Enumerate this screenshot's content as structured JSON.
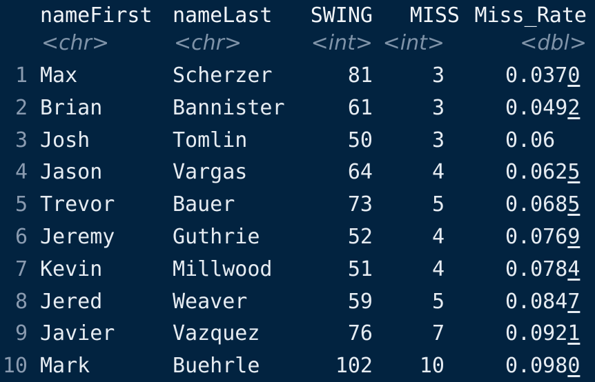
{
  "columns": [
    {
      "name": "nameFirst",
      "type": "<chr>"
    },
    {
      "name": "nameLast",
      "type": "<chr>"
    },
    {
      "name": "SWING",
      "type": "<int>"
    },
    {
      "name": "MISS",
      "type": "<int>"
    },
    {
      "name": "Miss_Rate",
      "type": "<dbl>"
    }
  ],
  "rows": [
    {
      "n": "1",
      "nameFirst": "Max",
      "nameLast": "Scherzer",
      "SWING": "81",
      "MISS": "3",
      "rate_main": "0.037",
      "rate_sig": "0"
    },
    {
      "n": "2",
      "nameFirst": "Brian",
      "nameLast": "Bannister",
      "SWING": "61",
      "MISS": "3",
      "rate_main": "0.049",
      "rate_sig": "2"
    },
    {
      "n": "3",
      "nameFirst": "Josh",
      "nameLast": "Tomlin",
      "SWING": "50",
      "MISS": "3",
      "rate_main": "0.06",
      "rate_sig": ""
    },
    {
      "n": "4",
      "nameFirst": "Jason",
      "nameLast": "Vargas",
      "SWING": "64",
      "MISS": "4",
      "rate_main": "0.062",
      "rate_sig": "5"
    },
    {
      "n": "5",
      "nameFirst": "Trevor",
      "nameLast": "Bauer",
      "SWING": "73",
      "MISS": "5",
      "rate_main": "0.068",
      "rate_sig": "5"
    },
    {
      "n": "6",
      "nameFirst": "Jeremy",
      "nameLast": "Guthrie",
      "SWING": "52",
      "MISS": "4",
      "rate_main": "0.076",
      "rate_sig": "9"
    },
    {
      "n": "7",
      "nameFirst": "Kevin",
      "nameLast": "Millwood",
      "SWING": "51",
      "MISS": "4",
      "rate_main": "0.078",
      "rate_sig": "4"
    },
    {
      "n": "8",
      "nameFirst": "Jered",
      "nameLast": "Weaver",
      "SWING": "59",
      "MISS": "5",
      "rate_main": "0.084",
      "rate_sig": "7"
    },
    {
      "n": "9",
      "nameFirst": "Javier",
      "nameLast": "Vazquez",
      "SWING": "76",
      "MISS": "7",
      "rate_main": "0.092",
      "rate_sig": "1"
    },
    {
      "n": "10",
      "nameFirst": "Mark",
      "nameLast": "Buehrle",
      "SWING": "102",
      "MISS": "10",
      "rate_main": "0.098",
      "rate_sig": "0"
    }
  ],
  "colors": {
    "background": "#022340",
    "text": "#e6ecf2",
    "muted": "#7f93a8"
  }
}
